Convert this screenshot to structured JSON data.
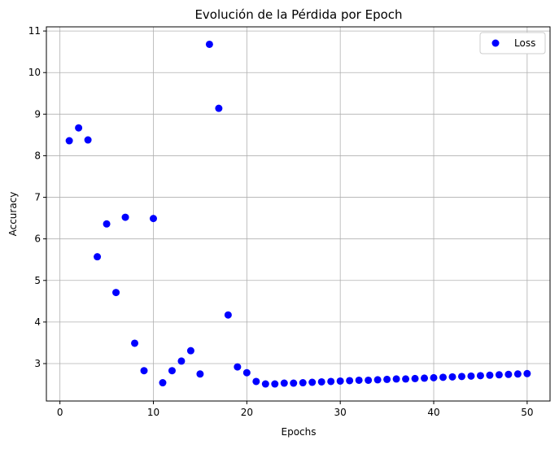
{
  "chart_data": {
    "type": "scatter",
    "title": "Evolución de la Pérdida por Epoch",
    "xlabel": "Epochs",
    "ylabel": "Accuracy",
    "xlim": [
      -1.45,
      52.45
    ],
    "ylim": [
      2.1,
      11.1
    ],
    "xticks": [
      0,
      10,
      20,
      30,
      40,
      50
    ],
    "yticks": [
      3,
      4,
      5,
      6,
      7,
      8,
      9,
      10,
      11
    ],
    "grid": true,
    "legend_position": "top-right",
    "series": [
      {
        "name": "Loss",
        "color": "#0000ff",
        "x": [
          1,
          2,
          3,
          4,
          5,
          6,
          7,
          8,
          9,
          10,
          11,
          12,
          13,
          14,
          15,
          16,
          17,
          18,
          19,
          20,
          21,
          22,
          23,
          24,
          25,
          26,
          27,
          28,
          29,
          30,
          31,
          32,
          33,
          34,
          35,
          36,
          37,
          38,
          39,
          40,
          41,
          42,
          43,
          44,
          45,
          46,
          47,
          48,
          49,
          50
        ],
        "y": [
          8.36,
          8.67,
          8.38,
          5.57,
          6.36,
          4.71,
          6.52,
          3.49,
          2.83,
          6.49,
          2.54,
          2.83,
          3.06,
          3.31,
          2.75,
          10.68,
          9.14,
          4.17,
          2.92,
          2.78,
          2.57,
          2.51,
          2.51,
          2.53,
          2.53,
          2.54,
          2.55,
          2.56,
          2.57,
          2.58,
          2.59,
          2.6,
          2.6,
          2.61,
          2.62,
          2.63,
          2.63,
          2.64,
          2.65,
          2.66,
          2.67,
          2.68,
          2.69,
          2.7,
          2.71,
          2.72,
          2.73,
          2.74,
          2.75,
          2.76
        ]
      }
    ]
  }
}
